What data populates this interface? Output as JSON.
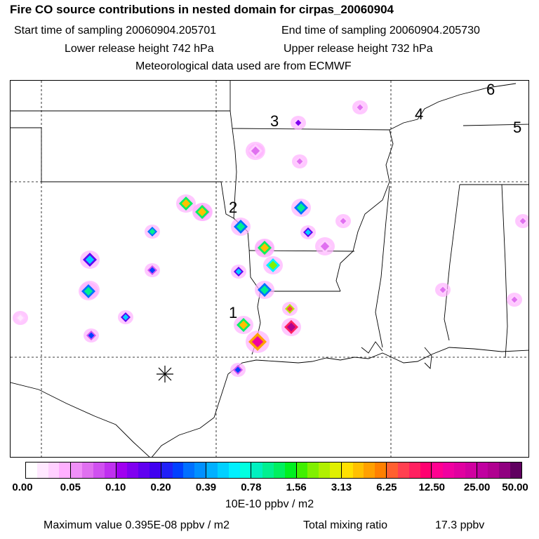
{
  "header": {
    "title": "Fire CO source contributions in nested domain for cirpas_20060904",
    "start_time": "Start time of sampling 20060904.205701",
    "end_time": "End time of sampling 20060904.205730",
    "lower_release": "Lower release height  742 hPa",
    "upper_release": "Upper release height  732 hPa",
    "met_data": "Meteorological data used are from ECMWF"
  },
  "map": {
    "site_labels": [
      "1",
      "2",
      "3",
      "4",
      "5",
      "6"
    ],
    "source_marker_icon": "asterisk-icon",
    "line_color": "#000000",
    "fires": [
      {
        "level": 2,
        "shape": "small"
      },
      {
        "level": 6,
        "shape": "medium"
      },
      {
        "level": 4,
        "shape": "medium"
      },
      {
        "level": 5,
        "shape": "small"
      },
      {
        "level": 7,
        "shape": "medium"
      },
      {
        "level": 6,
        "shape": "small"
      },
      {
        "level": 7,
        "shape": "small"
      },
      {
        "level": 5,
        "shape": "small"
      },
      {
        "level": 9,
        "shape": "medium"
      },
      {
        "level": 12,
        "shape": "medium"
      },
      {
        "level": 9,
        "shape": "medium"
      },
      {
        "level": 7,
        "shape": "medium"
      },
      {
        "level": 6,
        "shape": "small"
      },
      {
        "level": 9,
        "shape": "medium"
      },
      {
        "level": 10,
        "shape": "medium"
      },
      {
        "level": 9,
        "shape": "medium"
      },
      {
        "level": 5,
        "shape": "small"
      },
      {
        "level": 7,
        "shape": "medium"
      },
      {
        "level": 8,
        "shape": "medium"
      },
      {
        "level": 10,
        "shape": "small"
      },
      {
        "level": 12,
        "shape": "medium"
      },
      {
        "level": 11,
        "shape": "large"
      },
      {
        "level": 7,
        "shape": "medium"
      },
      {
        "level": 6,
        "shape": "small"
      },
      {
        "level": 3,
        "shape": "medium"
      },
      {
        "level": 3,
        "shape": "small"
      },
      {
        "level": 4,
        "shape": "small"
      },
      {
        "level": 3,
        "shape": "medium"
      },
      {
        "level": 3,
        "shape": "small"
      },
      {
        "level": 3,
        "shape": "small"
      },
      {
        "level": 3,
        "shape": "small"
      },
      {
        "level": 5,
        "shape": "small"
      },
      {
        "level": 3,
        "shape": "small"
      },
      {
        "level": 3,
        "shape": "small"
      }
    ]
  },
  "colorbar": {
    "colors": [
      [
        "#ffffff",
        "#ffe8ff",
        "#ffd0ff",
        "#ffb0ff"
      ],
      [
        "#f090f8",
        "#e070f0",
        "#d050f0",
        "#c030f0"
      ],
      [
        "#a000f0",
        "#8000f0",
        "#6000f0",
        "#4000f0"
      ],
      [
        "#2020f8",
        "#0040ff",
        "#0070ff",
        "#0090ff"
      ],
      [
        "#00b0ff",
        "#00d0ff",
        "#00f0ff",
        "#00ffe0"
      ],
      [
        "#00f0c0",
        "#00f090",
        "#00f060",
        "#00f020"
      ],
      [
        "#40f000",
        "#80f000",
        "#b0f000",
        "#e0f000"
      ],
      [
        "#ffe000",
        "#ffc000",
        "#ffa000",
        "#ff8000"
      ],
      [
        "#ff6030",
        "#ff4050",
        "#ff2060",
        "#ff0070"
      ],
      [
        "#ff0090",
        "#f000a0",
        "#e000a0",
        "#d000a0"
      ],
      [
        "#c000a0",
        "#b00090",
        "#900080",
        "#600060"
      ]
    ],
    "labels": [
      "0.00",
      "0.05",
      "0.10",
      "0.20",
      "0.39",
      "0.78",
      "1.56",
      "3.13",
      "6.25",
      "12.50",
      "25.00",
      "50.00"
    ],
    "units": "10E-10 ppbv / m2"
  },
  "footer": {
    "max_value": "Maximum value  0.395E-08 ppbv / m2",
    "total_mixing": "Total mixing ratio",
    "total_value": "17.3 ppbv"
  }
}
